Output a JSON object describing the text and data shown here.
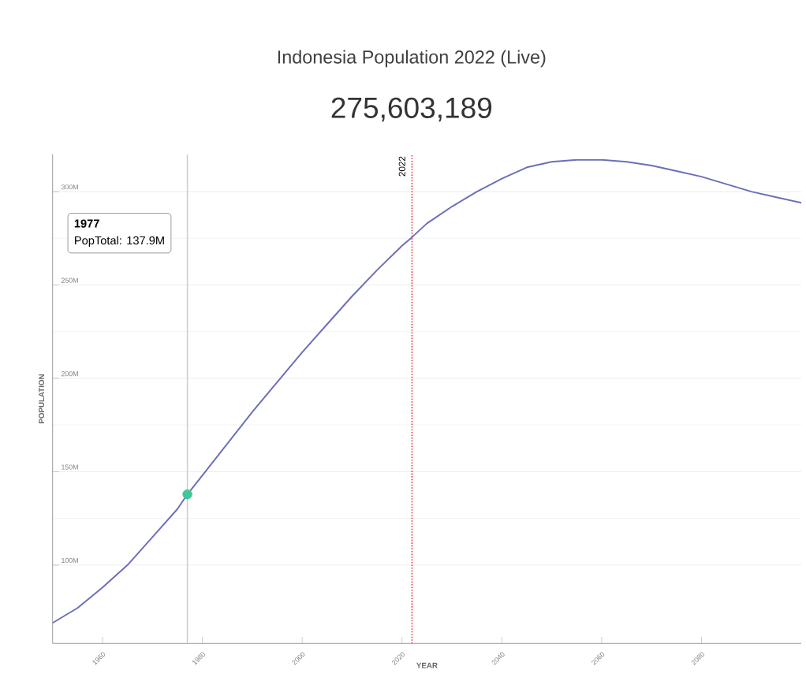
{
  "chart_data": {
    "type": "line",
    "title": "Indonesia Population 2022 (Live)",
    "subtitle": "275,603,189",
    "xlabel": "YEAR",
    "ylabel": "POPULATION",
    "series": [
      {
        "color": "#6a6fb8",
        "x": [
          1950,
          1955,
          1960,
          1965,
          1970,
          1975,
          1977,
          1980,
          1985,
          1990,
          1995,
          2000,
          2005,
          2010,
          2015,
          2020,
          2022,
          2025,
          2030,
          2035,
          2040,
          2045,
          2050,
          2055,
          2060,
          2065,
          2070,
          2075,
          2080,
          2085,
          2090,
          2095,
          2100
        ],
        "values": [
          69,
          77,
          88,
          100,
          115,
          130,
          137.9,
          148,
          165,
          182,
          198,
          214,
          229,
          244,
          258,
          271,
          275.6,
          283,
          292,
          300,
          307,
          313,
          316,
          317,
          317,
          316,
          314,
          311,
          308,
          304,
          300,
          297,
          294
        ]
      },
      {
        "type": "scatter",
        "color": "#3ec99a",
        "x": [
          1977
        ],
        "values": [
          137.9
        ]
      }
    ],
    "xlim": [
      1950,
      2100
    ],
    "xticks": [
      1960,
      1980,
      2000,
      2020,
      2040,
      2060,
      2080
    ],
    "ylim": [
      58,
      320
    ],
    "yticks": [
      {
        "value": 100,
        "label": "100M"
      },
      {
        "value": 150,
        "label": "150M"
      },
      {
        "value": 200,
        "label": "200M"
      },
      {
        "value": 250,
        "label": "250M"
      },
      {
        "value": 300,
        "label": "300M"
      }
    ],
    "grid": "y",
    "ref_lines": [
      {
        "axis": "x",
        "value": 1977,
        "color": "#cccccc"
      },
      {
        "axis": "x",
        "value": 2022,
        "label": "2022",
        "color": "#e03030",
        "line_style": "dotted"
      }
    ],
    "annotations": [
      "1977",
      "PopTotal: 137.9M"
    ]
  }
}
